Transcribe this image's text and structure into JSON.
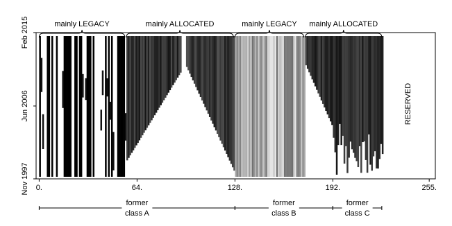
{
  "chart_data": {
    "type": "heatmap",
    "xlim": [
      -2,
      259
    ],
    "xticks": [
      {
        "value": 0,
        "label": "0."
      },
      {
        "value": 64,
        "label": "64."
      },
      {
        "value": 128,
        "label": "128."
      },
      {
        "value": 192,
        "label": "192."
      },
      {
        "value": 255,
        "label": "255."
      }
    ],
    "ylim": [
      1997.83,
      2015.08
    ],
    "yticks": [
      {
        "value": 1997.83,
        "label": "Nov 1997"
      },
      {
        "value": 2006.42,
        "label": "Jun 2006"
      },
      {
        "value": 2015.08,
        "label": "Feb 2015"
      }
    ],
    "annotations": [
      {
        "text": "mainly LEGACY",
        "range": [
          0,
          56
        ]
      },
      {
        "text": "mainly ALLOCATED",
        "range": [
          57,
          127
        ]
      },
      {
        "text": "mainly LEGACY",
        "range": [
          128,
          173
        ]
      },
      {
        "text": "mainly ALLOCATED",
        "range": [
          174,
          224
        ]
      }
    ],
    "classes": [
      {
        "line1": "former",
        "line2": "class A",
        "range": [
          0,
          128
        ]
      },
      {
        "line1": "former",
        "line2": "class B",
        "range": [
          128,
          192
        ]
      },
      {
        "line1": "former",
        "line2": "class C",
        "range": [
          192,
          224
        ]
      }
    ],
    "reserved_label": "RESERVED"
  }
}
